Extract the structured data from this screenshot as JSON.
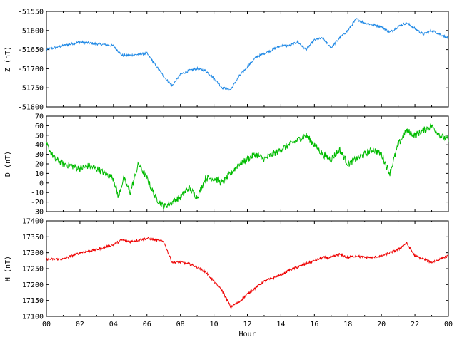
{
  "chart_data": [
    {
      "type": "line",
      "ylabel": "Z (nT)",
      "color": "#1e88e5",
      "ylim": [
        -51800,
        -51550
      ],
      "yticks": [
        "-51550",
        "-51600",
        "-51650",
        "-51700",
        "-51750",
        "-51800"
      ],
      "x_hours": [
        0,
        1,
        2,
        3,
        4,
        4.5,
        5,
        6,
        6.5,
        7,
        7.5,
        8,
        8.5,
        9,
        9.5,
        10,
        10.5,
        11,
        11.5,
        12,
        12.5,
        13,
        13.5,
        14,
        14.5,
        15,
        15.5,
        16,
        16.5,
        17,
        17.5,
        18,
        18.5,
        19,
        19.5,
        20,
        20.5,
        21,
        21.5,
        22,
        22.5,
        23,
        23.5,
        24
      ],
      "values": [
        -51650,
        -51640,
        -51630,
        -51635,
        -51640,
        -51665,
        -51665,
        -51660,
        -51690,
        -51720,
        -51745,
        -51715,
        -51705,
        -51700,
        -51705,
        -51725,
        -51750,
        -51755,
        -51720,
        -51695,
        -51670,
        -51660,
        -51650,
        -51640,
        -51640,
        -51630,
        -51650,
        -51625,
        -51620,
        -51645,
        -51620,
        -51600,
        -51570,
        -51580,
        -51585,
        -51590,
        -51605,
        -51590,
        -51580,
        -51595,
        -51610,
        -51600,
        -51610,
        -51620
      ]
    },
    {
      "type": "line",
      "ylabel": "D (nT)",
      "color": "#00bb00",
      "ylim": [
        -30,
        70
      ],
      "yticks": [
        "70",
        "60",
        "50",
        "40",
        "30",
        "20",
        "10",
        "0",
        "-10",
        "-20",
        "-30"
      ],
      "x_hours": [
        0,
        0.5,
        1,
        1.5,
        2,
        2.5,
        3,
        3.5,
        4,
        4.3,
        4.6,
        5,
        5.5,
        6,
        6.5,
        7,
        7.5,
        8,
        8.5,
        9,
        9.5,
        10,
        10.5,
        11,
        11.5,
        12,
        12.5,
        13,
        13.5,
        14,
        14.5,
        15,
        15.5,
        16,
        16.5,
        17,
        17.5,
        18,
        18.5,
        19,
        19.5,
        20,
        20.5,
        21,
        21.5,
        22,
        22.5,
        23,
        23.5,
        24
      ],
      "values": [
        40,
        25,
        20,
        18,
        15,
        18,
        15,
        10,
        5,
        -15,
        5,
        -10,
        20,
        5,
        -15,
        -25,
        -20,
        -15,
        -5,
        -15,
        5,
        5,
        0,
        10,
        20,
        25,
        30,
        25,
        30,
        35,
        40,
        45,
        50,
        40,
        30,
        25,
        35,
        20,
        25,
        30,
        35,
        30,
        10,
        40,
        55,
        50,
        55,
        60,
        50,
        45
      ]
    },
    {
      "type": "line",
      "ylabel": "H (nT)",
      "color": "#ee0000",
      "ylim": [
        17100,
        17400
      ],
      "yticks": [
        "17400",
        "17350",
        "17300",
        "17250",
        "17200",
        "17150",
        "17100"
      ],
      "xlabel": "Hour",
      "xticks": [
        "00",
        "02",
        "04",
        "06",
        "08",
        "10",
        "12",
        "14",
        "16",
        "18",
        "20",
        "22",
        "00"
      ],
      "x_hours": [
        0,
        1,
        2,
        3,
        4,
        4.5,
        5,
        6,
        6.5,
        7,
        7.5,
        8,
        8.5,
        9,
        9.5,
        10,
        10.5,
        11,
        11.5,
        12,
        12.5,
        13,
        13.5,
        14,
        14.5,
        15,
        15.5,
        16,
        16.5,
        17,
        17.5,
        18,
        18.5,
        19,
        19.5,
        20,
        20.5,
        21,
        21.5,
        22,
        22.5,
        23,
        23.5,
        24
      ],
      "values": [
        17280,
        17280,
        17300,
        17310,
        17325,
        17340,
        17335,
        17345,
        17340,
        17335,
        17270,
        17270,
        17265,
        17255,
        17240,
        17210,
        17180,
        17130,
        17145,
        17170,
        17190,
        17210,
        17220,
        17230,
        17245,
        17255,
        17265,
        17275,
        17285,
        17285,
        17295,
        17285,
        17290,
        17285,
        17285,
        17290,
        17300,
        17310,
        17330,
        17290,
        17280,
        17270,
        17280,
        17290
      ]
    }
  ]
}
